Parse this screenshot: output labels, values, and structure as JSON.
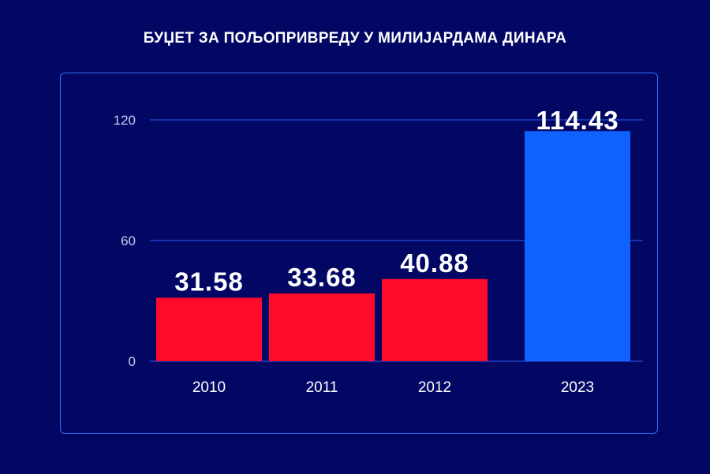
{
  "title": "БУЏЕТ ЗА ПОЉОПРИВРЕДУ У МИЛИЈАРДАМА ДИНАРА",
  "colors": {
    "background": "#020764",
    "panel_border": "#2f6cf2",
    "bar_red": "#fc0b2a",
    "bar_blue": "#0f62fe",
    "grid": "#1e3fc4",
    "axis_text": "#c7cdf2",
    "label_text": "#ffffff"
  },
  "chart_data": {
    "type": "bar",
    "categories": [
      "2010",
      "2011",
      "2012",
      "2023"
    ],
    "values": [
      31.58,
      33.68,
      40.88,
      114.43
    ],
    "value_labels": [
      "31.58",
      "33.68",
      "40.88",
      "114.43"
    ],
    "bar_colors": [
      "#fc0b2a",
      "#fc0b2a",
      "#fc0b2a",
      "#0f62fe"
    ],
    "title": "БУЏЕТ ЗА ПОЉОПРИВРЕДУ У МИЛИЈАРДАМА ДИНАРА",
    "xlabel": "",
    "ylabel": "",
    "ylim": [
      0,
      120
    ],
    "yticks": [
      0,
      60,
      120
    ],
    "grid": true
  }
}
